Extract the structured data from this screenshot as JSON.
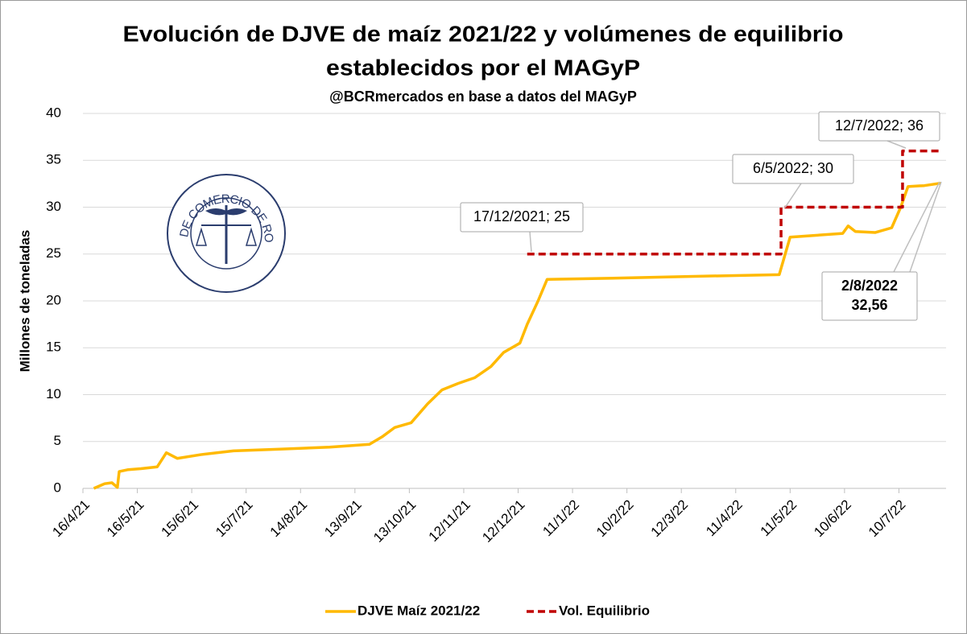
{
  "chart_data": {
    "type": "line",
    "title": [
      "Evolución de DJVE de maíz 2021/22 y volúmenes de equilibrio",
      "establecidos por el MAGyP"
    ],
    "subtitle": "@BCRmercados en base a datos del MAGyP",
    "ylabel": "Millones de toneladas",
    "logo_text": "BOLSA DE COMERCIO DE ROSARIO",
    "xlim": [
      "2021-04-16",
      "2022-08-05"
    ],
    "xticks": [
      {
        "value": "2021-04-16",
        "label": "16/4/21"
      },
      {
        "value": "2021-05-16",
        "label": "16/5/21"
      },
      {
        "value": "2021-06-15",
        "label": "15/6/21"
      },
      {
        "value": "2021-07-15",
        "label": "15/7/21"
      },
      {
        "value": "2021-08-14",
        "label": "14/8/21"
      },
      {
        "value": "2021-09-13",
        "label": "13/9/21"
      },
      {
        "value": "2021-10-13",
        "label": "13/10/21"
      },
      {
        "value": "2021-11-12",
        "label": "12/11/21"
      },
      {
        "value": "2021-12-12",
        "label": "12/12/21"
      },
      {
        "value": "2022-01-11",
        "label": "11/1/22"
      },
      {
        "value": "2022-02-10",
        "label": "10/2/22"
      },
      {
        "value": "2022-03-12",
        "label": "12/3/22"
      },
      {
        "value": "2022-04-11",
        "label": "11/4/22"
      },
      {
        "value": "2022-05-11",
        "label": "11/5/22"
      },
      {
        "value": "2022-06-10",
        "label": "10/6/22"
      },
      {
        "value": "2022-07-10",
        "label": "10/7/22"
      }
    ],
    "ylim": [
      0,
      40
    ],
    "yticks": [
      0,
      5,
      10,
      15,
      20,
      25,
      30,
      35,
      40
    ],
    "grid": true,
    "series": [
      {
        "name": "DJVE Maíz 2021/22",
        "color": "#ffb900",
        "style": "solid",
        "x": [
          "2021-04-22",
          "2021-04-28",
          "2021-05-02",
          "2021-05-05",
          "2021-05-06",
          "2021-05-11",
          "2021-05-18",
          "2021-05-27",
          "2021-06-01",
          "2021-06-07",
          "2021-06-20",
          "2021-07-08",
          "2021-08-04",
          "2021-08-30",
          "2021-09-21",
          "2021-09-28",
          "2021-10-05",
          "2021-10-14",
          "2021-10-23",
          "2021-10-31",
          "2021-11-09",
          "2021-11-18",
          "2021-11-27",
          "2021-12-04",
          "2021-12-13",
          "2021-12-17",
          "2021-12-23",
          "2021-12-28",
          "2022-01-28",
          "2022-03-14",
          "2022-05-05",
          "2022-05-11",
          "2022-06-09",
          "2022-06-12",
          "2022-06-16",
          "2022-06-27",
          "2022-07-06",
          "2022-07-11",
          "2022-07-15",
          "2022-07-24",
          "2022-08-02"
        ],
        "values": [
          0,
          0.5,
          0.6,
          0.1,
          1.8,
          2.0,
          2.1,
          2.3,
          3.8,
          3.2,
          3.6,
          4.0,
          4.2,
          4.4,
          4.7,
          5.5,
          6.5,
          7,
          9,
          10.5,
          11.2,
          11.8,
          13,
          14.5,
          15.5,
          17.5,
          20,
          22.3,
          22.4,
          22.6,
          22.8,
          26.8,
          27.2,
          28,
          27.4,
          27.3,
          27.8,
          30,
          32.2,
          32.3,
          32.56
        ]
      },
      {
        "name": "Vol. Equilibrio",
        "color": "#c00000",
        "style": "dashed",
        "step": true,
        "x": [
          "2021-12-17",
          "2022-05-06",
          "2022-07-12",
          "2022-08-02"
        ],
        "values": [
          25,
          30,
          36,
          36
        ]
      }
    ],
    "annotations": [
      {
        "text": [
          "17/12/2021; 25"
        ]
      },
      {
        "text": [
          "6/5/2022; 30"
        ]
      },
      {
        "text": [
          "12/7/2022; 36"
        ]
      },
      {
        "text": [
          "2/8/2022",
          "32,56"
        ]
      }
    ],
    "legend": "bottom"
  }
}
